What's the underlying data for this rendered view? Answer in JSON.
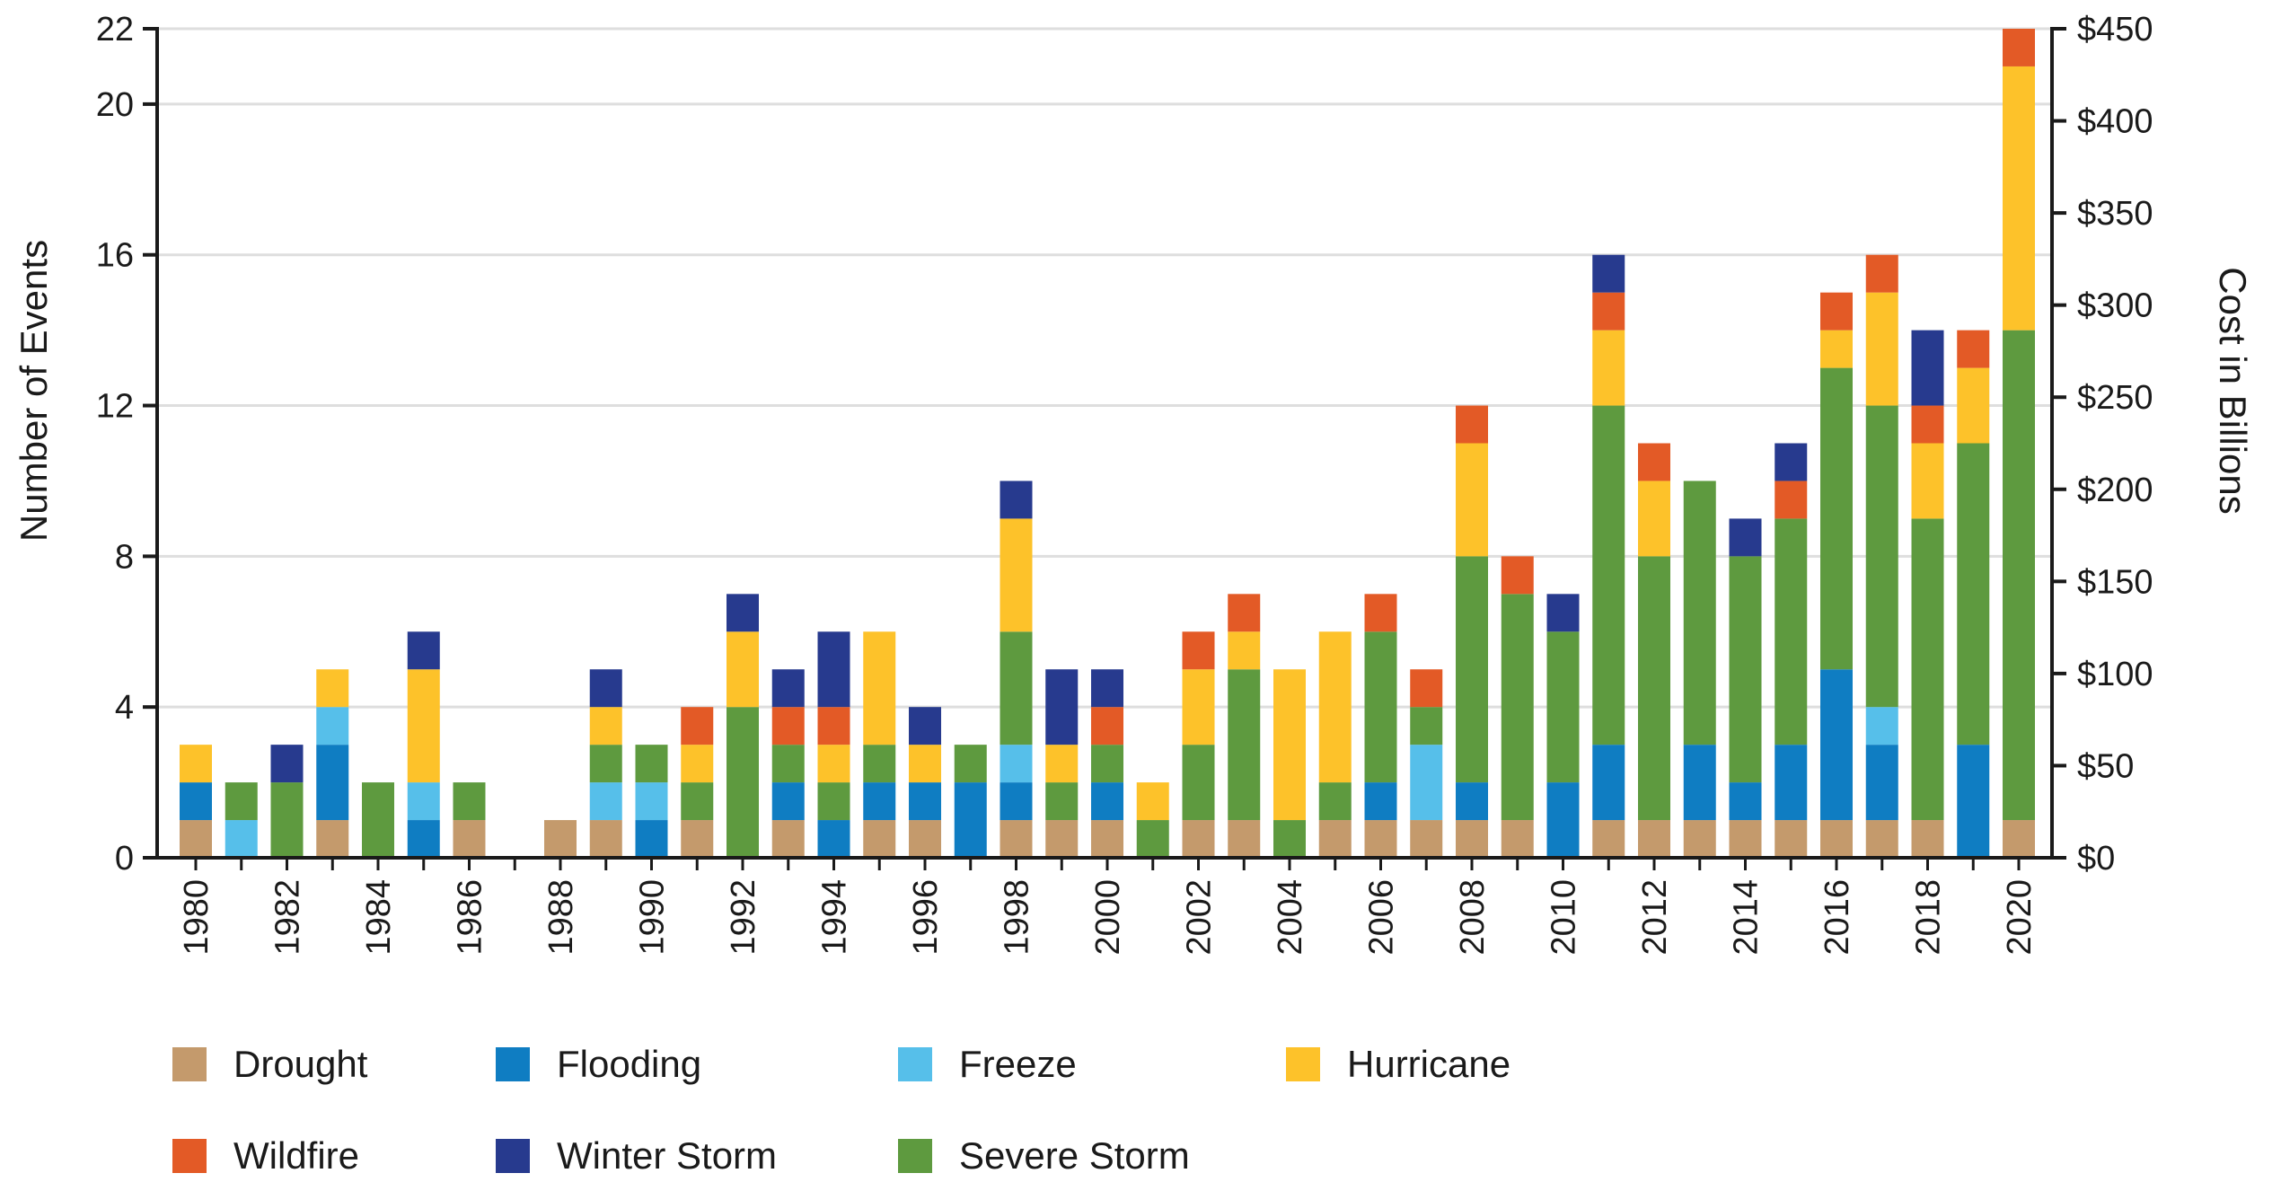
{
  "chart_data": {
    "type": "bar",
    "stacked": true,
    "ylabel": "Number of Events",
    "y2label": "Cost in Billions",
    "ylim": [
      0,
      22
    ],
    "y_ticks": [
      0,
      4,
      8,
      12,
      16,
      20,
      22
    ],
    "y2lim": [
      0,
      450
    ],
    "y2_ticks": [
      "$0",
      "$50",
      "$100",
      "$150",
      "$200",
      "$250",
      "$300",
      "$350",
      "$400",
      "$450"
    ],
    "grid": "horizontal",
    "legend_position": "bottom",
    "categories": [
      1980,
      1981,
      1982,
      1983,
      1984,
      1985,
      1986,
      1987,
      1988,
      1989,
      1990,
      1991,
      1992,
      1993,
      1994,
      1995,
      1996,
      1997,
      1998,
      1999,
      2000,
      2001,
      2002,
      2003,
      2004,
      2005,
      2006,
      2007,
      2008,
      2009,
      2010,
      2011,
      2012,
      2013,
      2014,
      2015,
      2016,
      2017,
      2018,
      2019,
      2020
    ],
    "x_tick_labels": [
      "1980",
      "1982",
      "1984",
      "1986",
      "1988",
      "1990",
      "1992",
      "1994",
      "1996",
      "1998",
      "2000",
      "2002",
      "2004",
      "2006",
      "2008",
      "2010",
      "2012",
      "2014",
      "2016",
      "2018",
      "2020"
    ],
    "series": [
      {
        "name": "Drought",
        "color": "#c49a6c",
        "values": [
          1,
          0,
          0,
          1,
          0,
          0,
          1,
          0,
          1,
          1,
          0,
          1,
          0,
          1,
          0,
          1,
          1,
          0,
          1,
          1,
          1,
          0,
          1,
          1,
          0,
          1,
          1,
          1,
          1,
          1,
          0,
          1,
          1,
          1,
          1,
          1,
          1,
          1,
          1,
          0,
          1
        ]
      },
      {
        "name": "Flooding",
        "color": "#0f7dc2",
        "values": [
          1,
          0,
          0,
          2,
          0,
          1,
          0,
          0,
          0,
          0,
          1,
          0,
          0,
          1,
          1,
          1,
          1,
          2,
          1,
          0,
          1,
          0,
          0,
          0,
          0,
          0,
          1,
          0,
          1,
          0,
          2,
          2,
          0,
          2,
          1,
          2,
          4,
          2,
          0,
          3,
          0
        ]
      },
      {
        "name": "Freeze",
        "color": "#56bfea",
        "values": [
          0,
          1,
          0,
          1,
          0,
          1,
          0,
          0,
          0,
          1,
          1,
          0,
          0,
          0,
          0,
          0,
          0,
          0,
          1,
          0,
          0,
          0,
          0,
          0,
          0,
          0,
          0,
          2,
          0,
          0,
          0,
          0,
          0,
          0,
          0,
          0,
          0,
          1,
          0,
          0,
          0
        ]
      },
      {
        "name": "Severe Storm",
        "color": "#5e9a3f",
        "values": [
          0,
          1,
          2,
          0,
          2,
          0,
          1,
          0,
          0,
          1,
          1,
          1,
          4,
          1,
          1,
          1,
          0,
          1,
          3,
          1,
          1,
          1,
          2,
          4,
          1,
          1,
          4,
          1,
          6,
          6,
          4,
          9,
          7,
          7,
          6,
          6,
          8,
          8,
          8,
          8,
          13
        ]
      },
      {
        "name": "Hurricane",
        "color": "#fdc22a",
        "values": [
          1,
          0,
          0,
          1,
          0,
          3,
          0,
          0,
          0,
          1,
          0,
          1,
          2,
          0,
          1,
          3,
          1,
          0,
          3,
          1,
          0,
          1,
          2,
          1,
          4,
          4,
          0,
          0,
          3,
          0,
          0,
          2,
          2,
          0,
          0,
          0,
          1,
          3,
          2,
          2,
          7
        ]
      },
      {
        "name": "Wildfire",
        "color": "#e35a26",
        "values": [
          0,
          0,
          0,
          0,
          0,
          0,
          0,
          0,
          0,
          0,
          0,
          1,
          0,
          1,
          1,
          0,
          0,
          0,
          0,
          0,
          1,
          0,
          1,
          1,
          0,
          0,
          1,
          1,
          1,
          1,
          0,
          1,
          1,
          0,
          0,
          1,
          1,
          1,
          1,
          1,
          1
        ]
      },
      {
        "name": "Winter Storm",
        "color": "#273a8e",
        "values": [
          0,
          0,
          1,
          0,
          0,
          1,
          0,
          0,
          0,
          1,
          0,
          0,
          1,
          1,
          2,
          0,
          1,
          0,
          1,
          2,
          1,
          0,
          0,
          0,
          0,
          0,
          0,
          0,
          0,
          0,
          1,
          1,
          0,
          0,
          1,
          1,
          0,
          0,
          2,
          0,
          0
        ]
      }
    ]
  },
  "legend": {
    "items": [
      {
        "label": "Drought",
        "color": "#c49a6c"
      },
      {
        "label": "Flooding",
        "color": "#0f7dc2"
      },
      {
        "label": "Freeze",
        "color": "#56bfea"
      },
      {
        "label": "Hurricane",
        "color": "#fdc22a"
      },
      {
        "label": "Wildfire",
        "color": "#e35a26"
      },
      {
        "label": "Winter Storm",
        "color": "#273a8e"
      },
      {
        "label": "Severe Storm",
        "color": "#5e9a3f"
      }
    ]
  }
}
